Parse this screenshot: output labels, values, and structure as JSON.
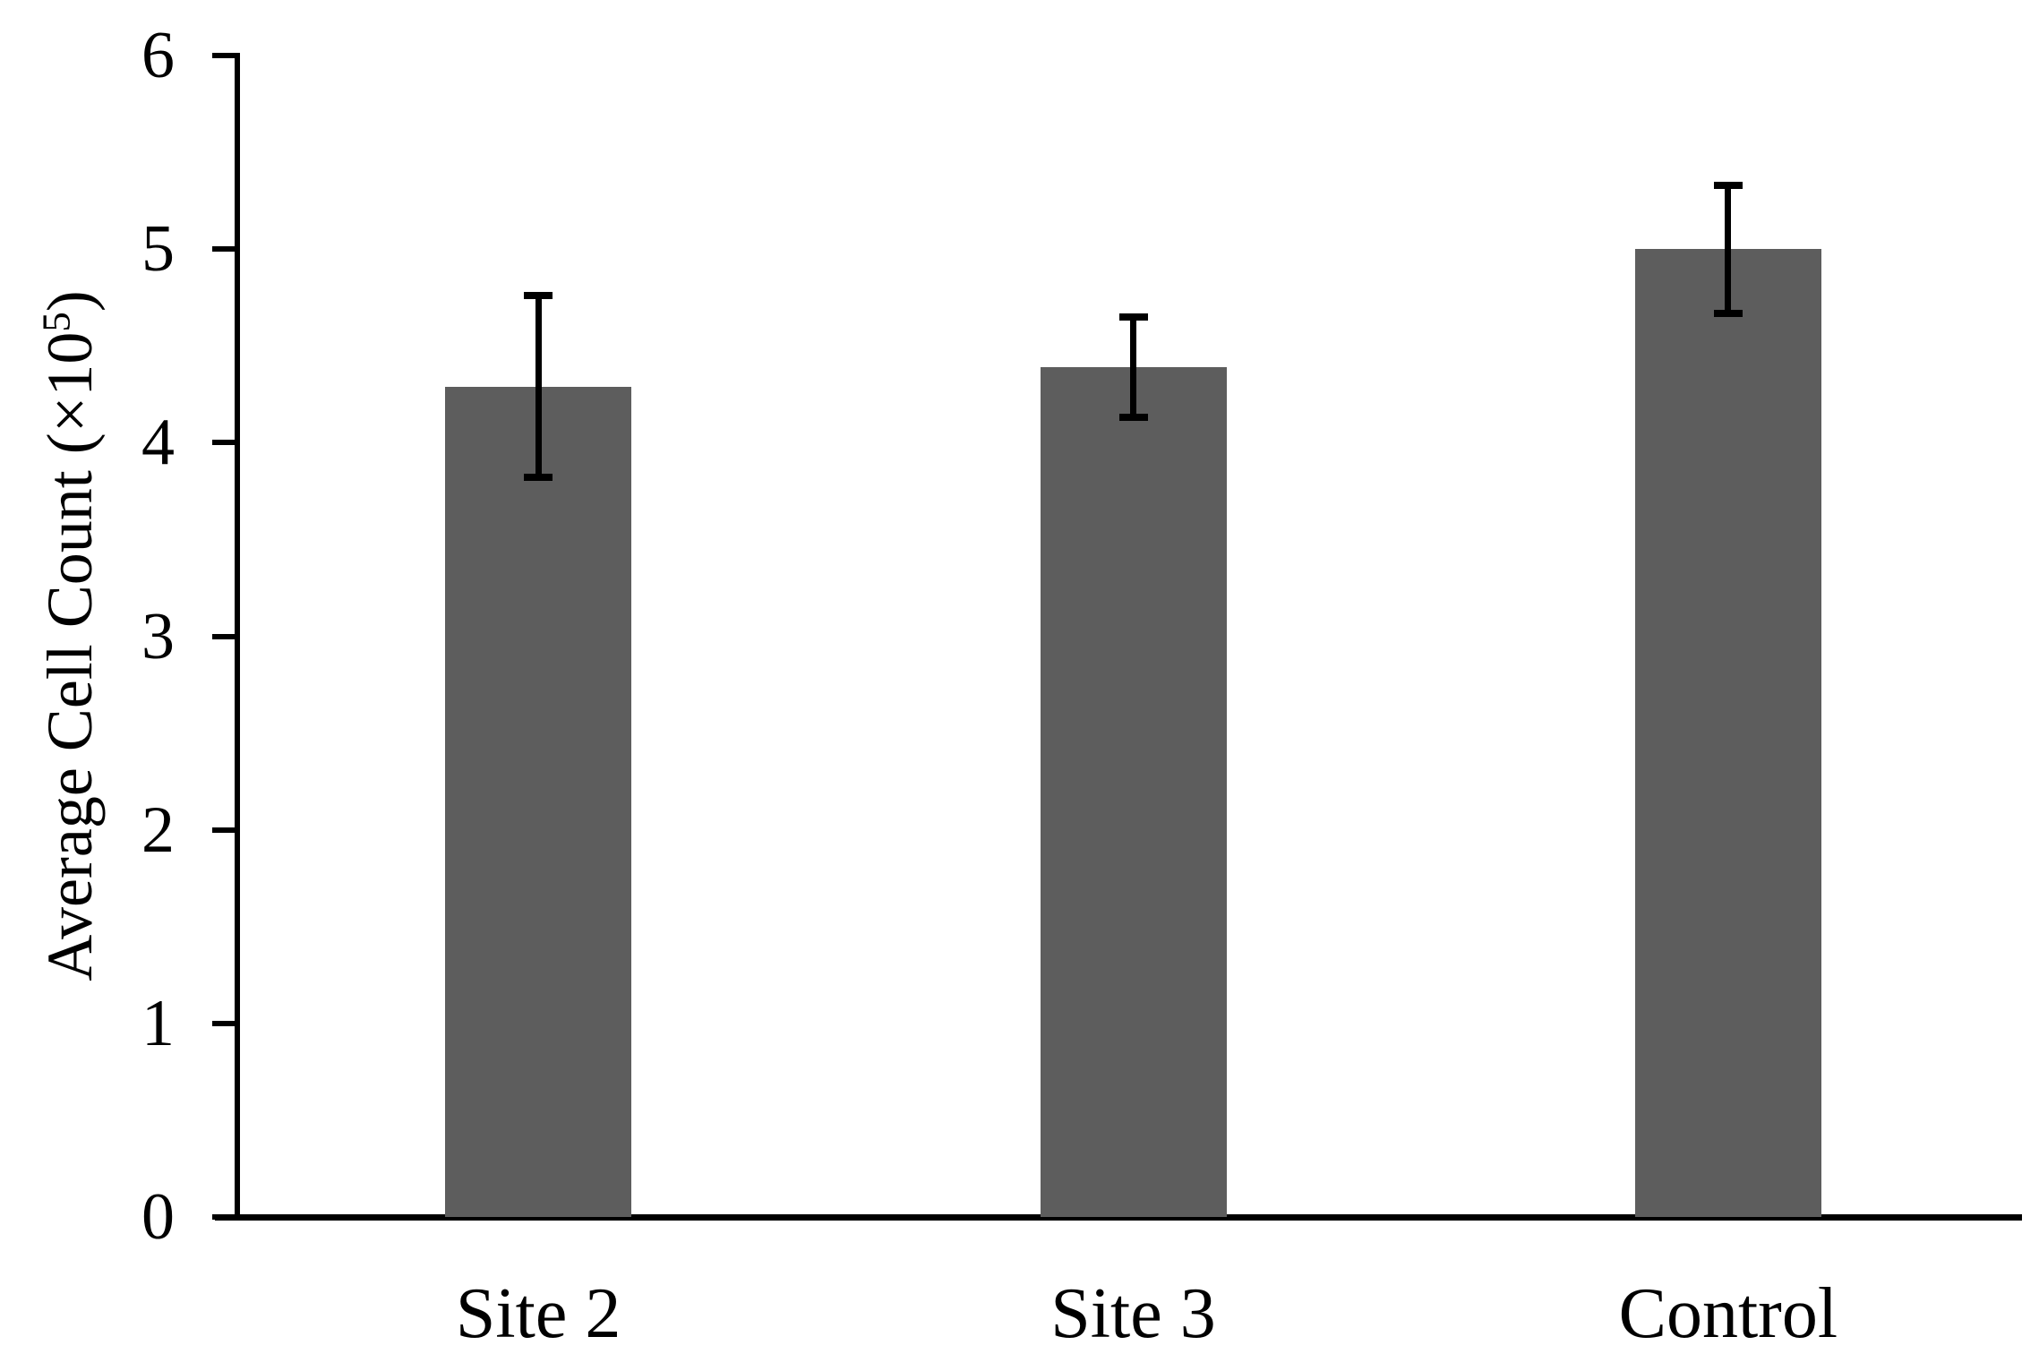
{
  "chart_data": {
    "type": "bar",
    "title": "",
    "categories": [
      "Site 2",
      "Site 3",
      "Control"
    ],
    "values": [
      4.29,
      4.39,
      5.0
    ],
    "error_bars_plus_minus": [
      0.47,
      0.26,
      0.33
    ],
    "ylabel": "Average Cell Count (×10⁵)",
    "ylabel_parts": {
      "text": "Average Cell Count (×10",
      "superscript": "5",
      "close_paren": ")"
    },
    "xlabel": "",
    "ylim": [
      0,
      6
    ],
    "yticks": [
      0,
      1,
      2,
      3,
      4,
      5,
      6
    ],
    "grid": false,
    "legend_position": "none",
    "bar_color": "#5d5d5d",
    "axis_color": "#000000",
    "error_bar_color": "#000000",
    "background_color": "#ffffff"
  }
}
